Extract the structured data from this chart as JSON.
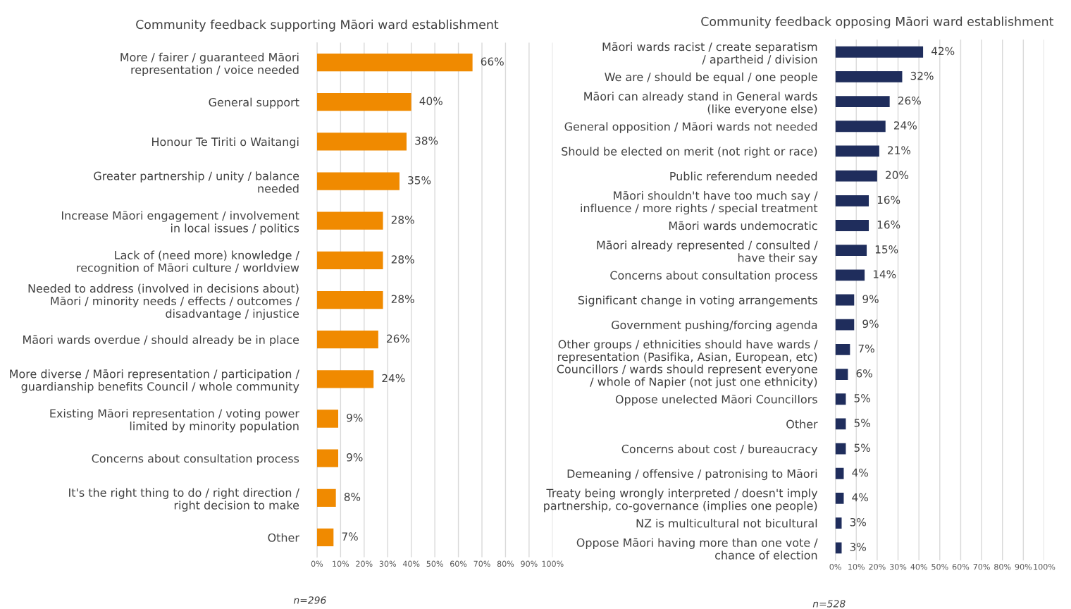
{
  "chart_data": [
    {
      "type": "bar",
      "orientation": "horizontal",
      "title": "Community feedback supporting Māori ward establishment",
      "categories": [
        "More / fairer / guaranteed Māori\nrepresentation / voice needed",
        "General support",
        "Honour Te Tiriti o Waitangi",
        "Greater partnership / unity / balance\nneeded",
        "Increase Māori engagement / involvement\nin local issues / politics",
        "Lack of (need more) knowledge /\nrecognition of Māori culture / worldview",
        "Needed to address (involved in decisions about)\nMāori / minority needs / effects / outcomes /\ndisadvantage / injustice",
        "Māori wards overdue / should already be in place",
        "More diverse / Māori representation / participation /\nguardianship benefits Council / whole community",
        "Existing Māori representation / voting power\nlimited by minority population",
        "Concerns about consultation process",
        "It's the right thing to do / right direction /\nright decision to make",
        "Other"
      ],
      "values": [
        66,
        40,
        38,
        35,
        28,
        28,
        28,
        26,
        24,
        9,
        9,
        8,
        7
      ],
      "value_labels": [
        "66%",
        "40%",
        "38%",
        "35%",
        "28%",
        "28%",
        "28%",
        "26%",
        "24%",
        "9%",
        "9%",
        "8%",
        "7%"
      ],
      "color": "#f08a00",
      "xlim": [
        0,
        100
      ],
      "xticks": [
        {
          "value": 0,
          "label": "0%"
        },
        {
          "value": 10,
          "label": "10%"
        },
        {
          "value": 20,
          "label": "20%"
        },
        {
          "value": 30,
          "label": "30%"
        },
        {
          "value": 40,
          "label": "40%"
        },
        {
          "value": 50,
          "label": "50%"
        },
        {
          "value": 60,
          "label": "60%"
        },
        {
          "value": 70,
          "label": "70%"
        },
        {
          "value": 80,
          "label": "80%"
        },
        {
          "value": 90,
          "label": "90%"
        },
        {
          "value": 100,
          "label": "100%"
        }
      ],
      "grid": "x",
      "annotations": [
        "n=296"
      ]
    },
    {
      "type": "bar",
      "orientation": "horizontal",
      "title": "Community feedback opposing Māori ward establishment",
      "categories": [
        "Māori wards racist / create separatism\n/ apartheid / division",
        "We are / should be equal / one people",
        "Māori can already stand in General wards\n(like everyone else)",
        "General opposition / Māori wards not needed",
        "Should be elected on merit (not right or race)",
        "Public referendum needed",
        "Māori shouldn't have too much say /\ninfluence / more rights / special treatment",
        "Māori wards undemocratic",
        "Māori already represented / consulted /\nhave their say",
        "Concerns about consultation process",
        "Significant change in voting arrangements",
        "Government pushing/forcing agenda",
        "Other groups / ethnicities should have wards /\nrepresentation (Pasifika, Asian, European, etc)",
        "Councillors / wards should represent everyone\n/ whole of Napier (not just one ethnicity)",
        "Oppose unelected Māori Councillors",
        "Other",
        "Concerns about cost / bureaucracy",
        "Demeaning / offensive / patronising to Māori",
        "Treaty being wrongly interpreted / doesn't imply\npartnership, co-governance (implies one people)",
        "NZ is multicultural not bicultural",
        "Oppose Māori having more than one vote /\nchance of election"
      ],
      "values": [
        42,
        32,
        26,
        24,
        21,
        20,
        16,
        16,
        15,
        14,
        9,
        9,
        7,
        6,
        5,
        5,
        5,
        4,
        4,
        3,
        3
      ],
      "value_labels": [
        "42%",
        "32%",
        "26%",
        "24%",
        "21%",
        "20%",
        "16%",
        "16%",
        "15%",
        "14%",
        "9%",
        "9%",
        "7%",
        "6%",
        "5%",
        "5%",
        "5%",
        "4%",
        "4%",
        "3%",
        "3%"
      ],
      "color": "#1f2d5c",
      "xlim": [
        0,
        100
      ],
      "xticks": [
        {
          "value": 0,
          "label": "0%"
        },
        {
          "value": 10,
          "label": "10%"
        },
        {
          "value": 20,
          "label": "20%"
        },
        {
          "value": 30,
          "label": "30%"
        },
        {
          "value": 40,
          "label": "40%"
        },
        {
          "value": 50,
          "label": "50%"
        },
        {
          "value": 60,
          "label": "60%"
        },
        {
          "value": 70,
          "label": "70%"
        },
        {
          "value": 80,
          "label": "80%"
        },
        {
          "value": 90,
          "label": "90%"
        },
        {
          "value": 100,
          "label": "100%"
        }
      ],
      "grid": "x",
      "annotations": [
        "n=528"
      ]
    }
  ]
}
